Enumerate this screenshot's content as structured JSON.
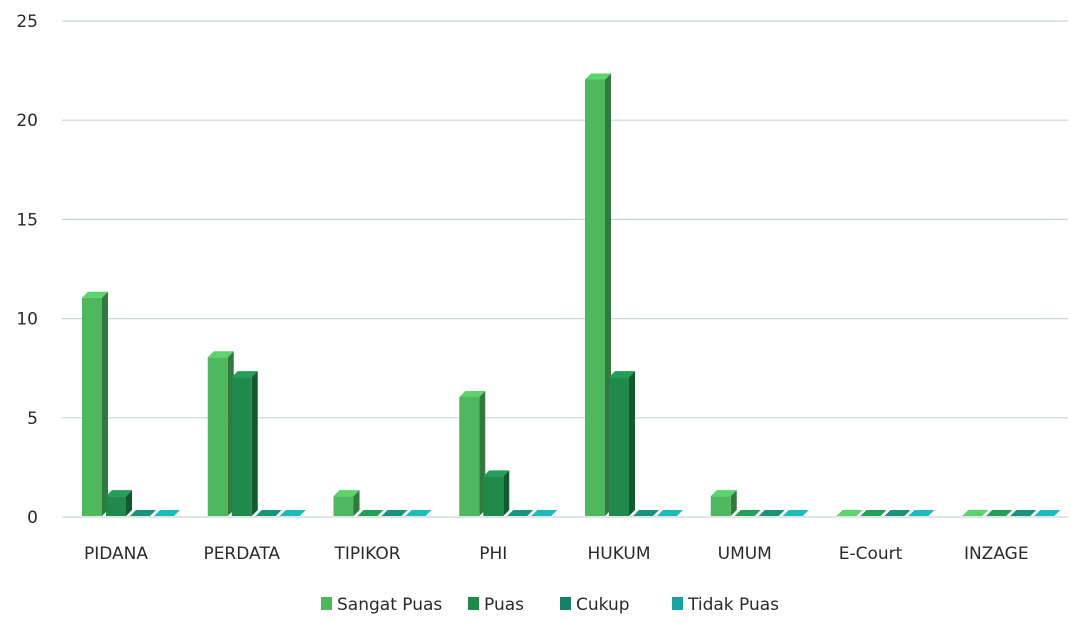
{
  "chart_data": {
    "type": "bar",
    "title": "",
    "xlabel": "",
    "ylabel": "",
    "ylim": [
      0,
      25
    ],
    "yticks": [
      0,
      5,
      10,
      15,
      20,
      25
    ],
    "grid": true,
    "legend_position": "bottom",
    "categories": [
      "PIDANA",
      "PERDATA",
      "TIPIKOR",
      "PHI",
      "HUKUM",
      "UMUM",
      "E-Court",
      "INZAGE"
    ],
    "series": [
      {
        "name": "Sangat Puas",
        "color": "#4fb85f",
        "values": [
          11,
          8,
          1,
          6,
          22,
          1,
          0,
          0
        ]
      },
      {
        "name": "Puas",
        "color": "#1f8a4c",
        "values": [
          1,
          7,
          0,
          2,
          7,
          0,
          0,
          0
        ]
      },
      {
        "name": "Cukup",
        "color": "#16806a",
        "values": [
          0,
          0,
          0,
          0,
          0,
          0,
          0,
          0
        ]
      },
      {
        "name": "Tidak Puas",
        "color": "#1aa3a0",
        "values": [
          0,
          0,
          0,
          0,
          0,
          0,
          0,
          0
        ]
      }
    ]
  }
}
